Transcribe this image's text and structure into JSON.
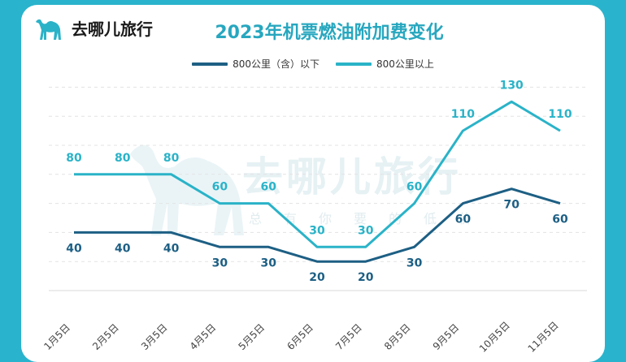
{
  "brand": {
    "name": "去哪儿旅行",
    "watermark_text": "去哪儿旅行",
    "watermark_slogan": "总有你要的低价",
    "logo_icon": "camel-icon"
  },
  "colors": {
    "background": "#2ab3cc",
    "title": "#27a7bf",
    "series_dark": "#1d5f84",
    "series_light": "#2ab3c8"
  },
  "chart_data": {
    "type": "line",
    "title": "2023年机票燃油附加费变化",
    "categories": [
      "1月5日",
      "2月5日",
      "3月5日",
      "4月5日",
      "5月5日",
      "6月5日",
      "7月5日",
      "8月5日",
      "9月5日",
      "10月5日",
      "11月5日"
    ],
    "series": [
      {
        "name": "800公里（含）以下",
        "values": [
          40,
          40,
          40,
          30,
          30,
          20,
          20,
          30,
          60,
          70,
          60
        ],
        "color": "#1d5f84",
        "label_position": "below"
      },
      {
        "name": "800公里以上",
        "values": [
          80,
          80,
          80,
          60,
          60,
          30,
          30,
          60,
          110,
          130,
          110
        ],
        "color": "#2ab3c8",
        "label_position": "above"
      }
    ],
    "ylim": [
      0,
      140
    ],
    "grid": true,
    "legend": "top-center",
    "xlabel": "",
    "ylabel": ""
  }
}
